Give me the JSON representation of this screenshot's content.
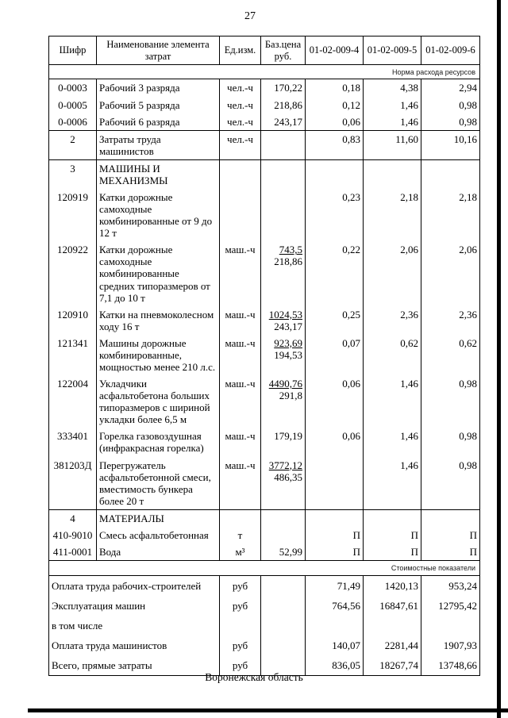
{
  "page": {
    "number": "27",
    "footer_caption": "Воронежская область"
  },
  "colors": {
    "background": "#ffffff",
    "border": "#000000",
    "scan_edge": "#000000"
  },
  "table": {
    "headers": [
      "Шифр",
      "Наименование элемента затрат",
      "Ед.изм.",
      "Баз.цена руб.",
      "01-02-009-4",
      "01-02-009-5",
      "01-02-009-6"
    ],
    "rows": [
      {
        "kind": "band",
        "text": "Норма расхода ресурсов"
      },
      {
        "kind": "item",
        "code": "0-0003",
        "name": "Рабочий 3 разряда",
        "unit": "чел.-ч",
        "base": "170,22",
        "values": [
          "0,18",
          "4,38",
          "2,94"
        ]
      },
      {
        "kind": "item",
        "code": "0-0005",
        "name": "Рабочий 5 разряда",
        "unit": "чел.-ч",
        "base": "218,86",
        "values": [
          "0,12",
          "1,46",
          "0,98"
        ]
      },
      {
        "kind": "item",
        "code": "0-0006",
        "name": "Рабочий 6 разряда",
        "unit": "чел.-ч",
        "base": "243,17",
        "values": [
          "0,06",
          "1,46",
          "0,98"
        ]
      },
      {
        "kind": "item",
        "sep": true,
        "code_bold": true,
        "code": "2",
        "name": "Затраты труда машинистов",
        "unit": "чел.-ч",
        "base": "",
        "values": [
          "0,83",
          "11,60",
          "10,16"
        ]
      },
      {
        "kind": "item",
        "sep": true,
        "code_bold": true,
        "name_bold": true,
        "code": "3",
        "name": "МАШИНЫ И МЕХАНИЗМЫ",
        "unit": "",
        "base": "",
        "values": [
          "",
          "",
          ""
        ]
      },
      {
        "kind": "item",
        "code": "120919",
        "name": "Катки дорожные самоходные комбинированные от 9 до 12 т",
        "unit": "",
        "base": "",
        "values": [
          "0,23",
          "2,18",
          "2,18"
        ]
      },
      {
        "kind": "item",
        "code": "120922",
        "name": "Катки дорожные самоходные комбинированные средних типоразмеров от 7,1 до 10 т",
        "unit": "маш.-ч",
        "base": {
          "top": "743,5",
          "bottom": "218,86"
        },
        "values": [
          "0,22",
          "2,06",
          "2,06"
        ]
      },
      {
        "kind": "item",
        "code": "120910",
        "name": "Катки на пневмоколесном ходу 16 т",
        "unit": "маш.-ч",
        "base": {
          "top": "1024,53",
          "bottom": "243,17"
        },
        "values": [
          "0,25",
          "2,36",
          "2,36"
        ]
      },
      {
        "kind": "item",
        "code": "121341",
        "name": "Машины дорожные комбинированные, мощностью менее 210 л.с.",
        "unit": "маш.-ч",
        "base": {
          "top": "923,69",
          "bottom": "194,53"
        },
        "values": [
          "0,07",
          "0,62",
          "0,62"
        ]
      },
      {
        "kind": "item",
        "code": "122004",
        "name": "Укладчики асфальтобетона больших типоразмеров с шириной укладки более 6,5 м",
        "unit": "маш.-ч",
        "base": {
          "top": "4490,76",
          "bottom": "291,8"
        },
        "values": [
          "0,06",
          "1,46",
          "0,98"
        ]
      },
      {
        "kind": "item",
        "code": "333401",
        "name": "Горелка газовоздушная (инфракрасная горелка)",
        "unit": "маш.-ч",
        "base": "179,19",
        "values": [
          "0,06",
          "1,46",
          "0,98"
        ]
      },
      {
        "kind": "item",
        "code": "381203Д",
        "name": "Перегружатель асфальтобетонной смеси, вместимость бункера более 20 т",
        "unit": "маш.-ч",
        "base": {
          "top": "3772,12",
          "bottom": "486,35"
        },
        "values": [
          "",
          "1,46",
          "0,98"
        ]
      },
      {
        "kind": "item",
        "sep": true,
        "code_bold": true,
        "name_bold": true,
        "code": "4",
        "name": "МАТЕРИАЛЫ",
        "unit": "",
        "base": "",
        "values": [
          "",
          "",
          ""
        ]
      },
      {
        "kind": "item",
        "code": "410-9010",
        "name": "Смесь асфальтобетонная",
        "unit": "т",
        "base": "",
        "values": [
          "П",
          "П",
          "П"
        ]
      },
      {
        "kind": "item",
        "code": "411-0001",
        "name": "Вода",
        "unit": "м³",
        "base": "52,99",
        "values": [
          "П",
          "П",
          "П"
        ]
      },
      {
        "kind": "band",
        "text": "Стоимостные показатели"
      },
      {
        "kind": "total",
        "bold": true,
        "label": "Оплата труда рабочих-строителей",
        "unit": "руб",
        "values": [
          "71,49",
          "1420,13",
          "953,24"
        ]
      },
      {
        "kind": "total",
        "bold": true,
        "label": "Эксплуатация машин",
        "unit": "руб",
        "values": [
          "764,56",
          "16847,61",
          "12795,42"
        ]
      },
      {
        "kind": "total",
        "label": "в том числе",
        "unit": "",
        "values": [
          "",
          "",
          ""
        ]
      },
      {
        "kind": "total",
        "label": "Оплата труда машинистов",
        "unit": "руб",
        "values": [
          "140,07",
          "2281,44",
          "1907,93"
        ]
      },
      {
        "kind": "total",
        "bold": true,
        "label": "Всего, прямые затраты",
        "unit": "руб",
        "values": [
          "836,05",
          "18267,74",
          "13748,66"
        ]
      }
    ]
  }
}
